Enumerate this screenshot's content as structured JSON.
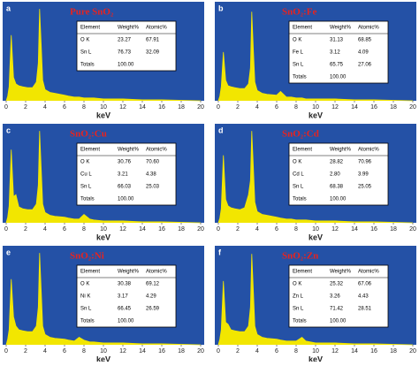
{
  "chart_data": [
    {
      "type": "line",
      "panel": "a",
      "title": "Pure SnO₂",
      "x_label": "keV",
      "color": "#f2e600",
      "background": "#2451a6",
      "xlim": [
        0,
        20
      ],
      "xticks": [
        0,
        2,
        4,
        6,
        8,
        10,
        12,
        14,
        16,
        18,
        20
      ],
      "ylim": [
        0,
        100
      ],
      "x": [
        0,
        0.15,
        0.3,
        0.52,
        0.75,
        1.0,
        1.3,
        1.7,
        2.2,
        2.7,
        3.1,
        3.3,
        3.44,
        3.6,
        3.75,
        4.0,
        4.5,
        5.0,
        6.0,
        6.4,
        7.0,
        7.5,
        8.0,
        8.6,
        9.0,
        10.0,
        12.0,
        14.0,
        16.0,
        20.0
      ],
      "values": [
        0,
        5,
        15,
        70,
        25,
        18,
        16,
        15,
        14,
        14,
        20,
        40,
        98,
        60,
        22,
        12,
        9,
        8,
        6,
        5,
        4,
        4,
        3,
        3,
        3,
        2,
        2,
        1,
        1,
        0
      ],
      "table": {
        "header": [
          "Element",
          "Weight%",
          "Atomic%"
        ],
        "rows": [
          [
            "O K",
            "23.27",
            "67.91"
          ],
          [
            "Sn L",
            "76.73",
            "32.09"
          ],
          [
            "Totals",
            "100.00",
            ""
          ]
        ]
      }
    },
    {
      "type": "line",
      "panel": "b",
      "title": "SnO₂:Fe",
      "x_label": "keV",
      "color": "#f2e600",
      "background": "#2451a6",
      "xlim": [
        0,
        20
      ],
      "xticks": [
        0,
        2,
        4,
        6,
        8,
        10,
        12,
        14,
        16,
        18,
        20
      ],
      "ylim": [
        0,
        100
      ],
      "x": [
        0,
        0.15,
        0.3,
        0.52,
        0.75,
        1.0,
        1.3,
        1.7,
        2.2,
        2.7,
        3.1,
        3.3,
        3.44,
        3.6,
        3.75,
        4.0,
        4.5,
        5.0,
        6.0,
        6.4,
        7.0,
        7.5,
        8.0,
        8.6,
        9.0,
        10.0,
        12.0,
        14.0,
        16.0,
        20.0
      ],
      "values": [
        0,
        5,
        15,
        52,
        22,
        16,
        15,
        14,
        13,
        13,
        18,
        35,
        95,
        55,
        20,
        11,
        8,
        7,
        6,
        10,
        4,
        4,
        3,
        3,
        2,
        2,
        2,
        1,
        1,
        0
      ],
      "table": {
        "header": [
          "Element",
          "Weight%",
          "Atomic%"
        ],
        "rows": [
          [
            "O K",
            "31.13",
            "68.85"
          ],
          [
            "Fe L",
            "3.12",
            "4.09"
          ],
          [
            "Sn L",
            "65.75",
            "27.06"
          ],
          [
            "Totals",
            "100.00",
            ""
          ]
        ]
      }
    },
    {
      "type": "line",
      "panel": "c",
      "title": "SnO₂:Cu",
      "x_label": "keV",
      "color": "#f2e600",
      "background": "#2451a6",
      "xlim": [
        0,
        20
      ],
      "xticks": [
        0,
        2,
        4,
        6,
        8,
        10,
        12,
        14,
        16,
        18,
        20
      ],
      "ylim": [
        0,
        100
      ],
      "x": [
        0,
        0.15,
        0.3,
        0.52,
        0.75,
        1.0,
        1.3,
        1.7,
        2.2,
        2.7,
        3.1,
        3.3,
        3.44,
        3.6,
        3.75,
        4.0,
        4.5,
        5.0,
        6.0,
        6.4,
        7.0,
        7.5,
        8.0,
        8.6,
        9.0,
        10.0,
        12.0,
        14.0,
        16.0,
        20.0
      ],
      "values": [
        0,
        6,
        18,
        78,
        28,
        30,
        17,
        15,
        14,
        14,
        20,
        40,
        98,
        58,
        20,
        11,
        8,
        7,
        6,
        5,
        4,
        4,
        9,
        4,
        3,
        2,
        2,
        1,
        1,
        0
      ],
      "table": {
        "header": [
          "Element",
          "Weight%",
          "Atomic%"
        ],
        "rows": [
          [
            "O K",
            "30.76",
            "70.60"
          ],
          [
            "Cu L",
            "3.21",
            "4.38"
          ],
          [
            "Sn L",
            "66.03",
            "25.03"
          ],
          [
            "Totals",
            "100.00",
            ""
          ]
        ]
      }
    },
    {
      "type": "line",
      "panel": "d",
      "title": "SnO₂:Cd",
      "x_label": "keV",
      "color": "#f2e600",
      "background": "#2451a6",
      "xlim": [
        0,
        20
      ],
      "xticks": [
        0,
        2,
        4,
        6,
        8,
        10,
        12,
        14,
        16,
        18,
        20
      ],
      "ylim": [
        0,
        100
      ],
      "x": [
        0,
        0.15,
        0.3,
        0.52,
        0.75,
        1.0,
        1.3,
        1.7,
        2.2,
        2.7,
        3.1,
        3.3,
        3.44,
        3.6,
        3.75,
        4.0,
        4.5,
        5.0,
        6.0,
        6.4,
        7.0,
        7.5,
        8.0,
        8.6,
        9.0,
        10.0,
        12.0,
        14.0,
        16.0,
        20.0
      ],
      "values": [
        0,
        5,
        15,
        72,
        25,
        18,
        16,
        15,
        14,
        16,
        30,
        45,
        98,
        60,
        22,
        12,
        9,
        8,
        6,
        5,
        4,
        4,
        3,
        3,
        3,
        2,
        2,
        1,
        1,
        0
      ],
      "table": {
        "header": [
          "Element",
          "Weight%",
          "Atomic%"
        ],
        "rows": [
          [
            "O K",
            "28.82",
            "70.96"
          ],
          [
            "Cd L",
            "2.80",
            "3.99"
          ],
          [
            "Sn L",
            "68.38",
            "25.05"
          ],
          [
            "Totals",
            "100.00",
            ""
          ]
        ]
      }
    },
    {
      "type": "line",
      "panel": "e",
      "title": "SnO₂:Ni",
      "x_label": "keV",
      "color": "#f2e600",
      "background": "#2451a6",
      "xlim": [
        0,
        20
      ],
      "xticks": [
        0,
        2,
        4,
        6,
        8,
        10,
        12,
        14,
        16,
        18,
        20
      ],
      "ylim": [
        0,
        100
      ],
      "x": [
        0,
        0.15,
        0.3,
        0.52,
        0.75,
        1.0,
        1.3,
        1.7,
        2.2,
        2.7,
        3.1,
        3.3,
        3.44,
        3.6,
        3.75,
        4.0,
        4.5,
        5.0,
        6.0,
        6.4,
        7.0,
        7.5,
        8.0,
        8.6,
        9.0,
        10.0,
        12.0,
        14.0,
        16.0,
        20.0
      ],
      "values": [
        0,
        6,
        16,
        70,
        30,
        20,
        16,
        15,
        14,
        14,
        20,
        40,
        98,
        58,
        20,
        11,
        8,
        7,
        6,
        5,
        4,
        8,
        5,
        3,
        3,
        2,
        2,
        1,
        1,
        0
      ],
      "table": {
        "header": [
          "Element",
          "Weight%",
          "Atomic%"
        ],
        "rows": [
          [
            "O K",
            "30.38",
            "69.12"
          ],
          [
            "Ni K",
            "3.17",
            "4.29"
          ],
          [
            "Sn L",
            "66.45",
            "26.59"
          ],
          [
            "Totals",
            "100.00",
            ""
          ]
        ]
      }
    },
    {
      "type": "line",
      "panel": "f",
      "title": "SnO₂:Zn",
      "x_label": "keV",
      "color": "#f2e600",
      "background": "#2451a6",
      "xlim": [
        0,
        20
      ],
      "xticks": [
        0,
        2,
        4,
        6,
        8,
        10,
        12,
        14,
        16,
        18,
        20
      ],
      "ylim": [
        0,
        100
      ],
      "x": [
        0,
        0.15,
        0.3,
        0.52,
        0.75,
        1.0,
        1.3,
        1.7,
        2.2,
        2.7,
        3.1,
        3.3,
        3.44,
        3.6,
        3.75,
        4.0,
        4.5,
        5.0,
        6.0,
        6.4,
        7.0,
        7.5,
        8.0,
        8.6,
        9.0,
        10.0,
        12.0,
        14.0,
        16.0,
        20.0
      ],
      "values": [
        0,
        6,
        16,
        68,
        24,
        22,
        16,
        15,
        14,
        14,
        20,
        40,
        97,
        58,
        20,
        11,
        8,
        7,
        6,
        5,
        4,
        4,
        4,
        8,
        4,
        2,
        2,
        1,
        1,
        0
      ],
      "table": {
        "header": [
          "Element",
          "Weight%",
          "Atomic%"
        ],
        "rows": [
          [
            "O K",
            "25.32",
            "67.06"
          ],
          [
            "Zn L",
            "3.26",
            "4.43"
          ],
          [
            "Sn L",
            "71.42",
            "28.51"
          ],
          [
            "Totals",
            "100.00",
            ""
          ]
        ]
      }
    }
  ]
}
